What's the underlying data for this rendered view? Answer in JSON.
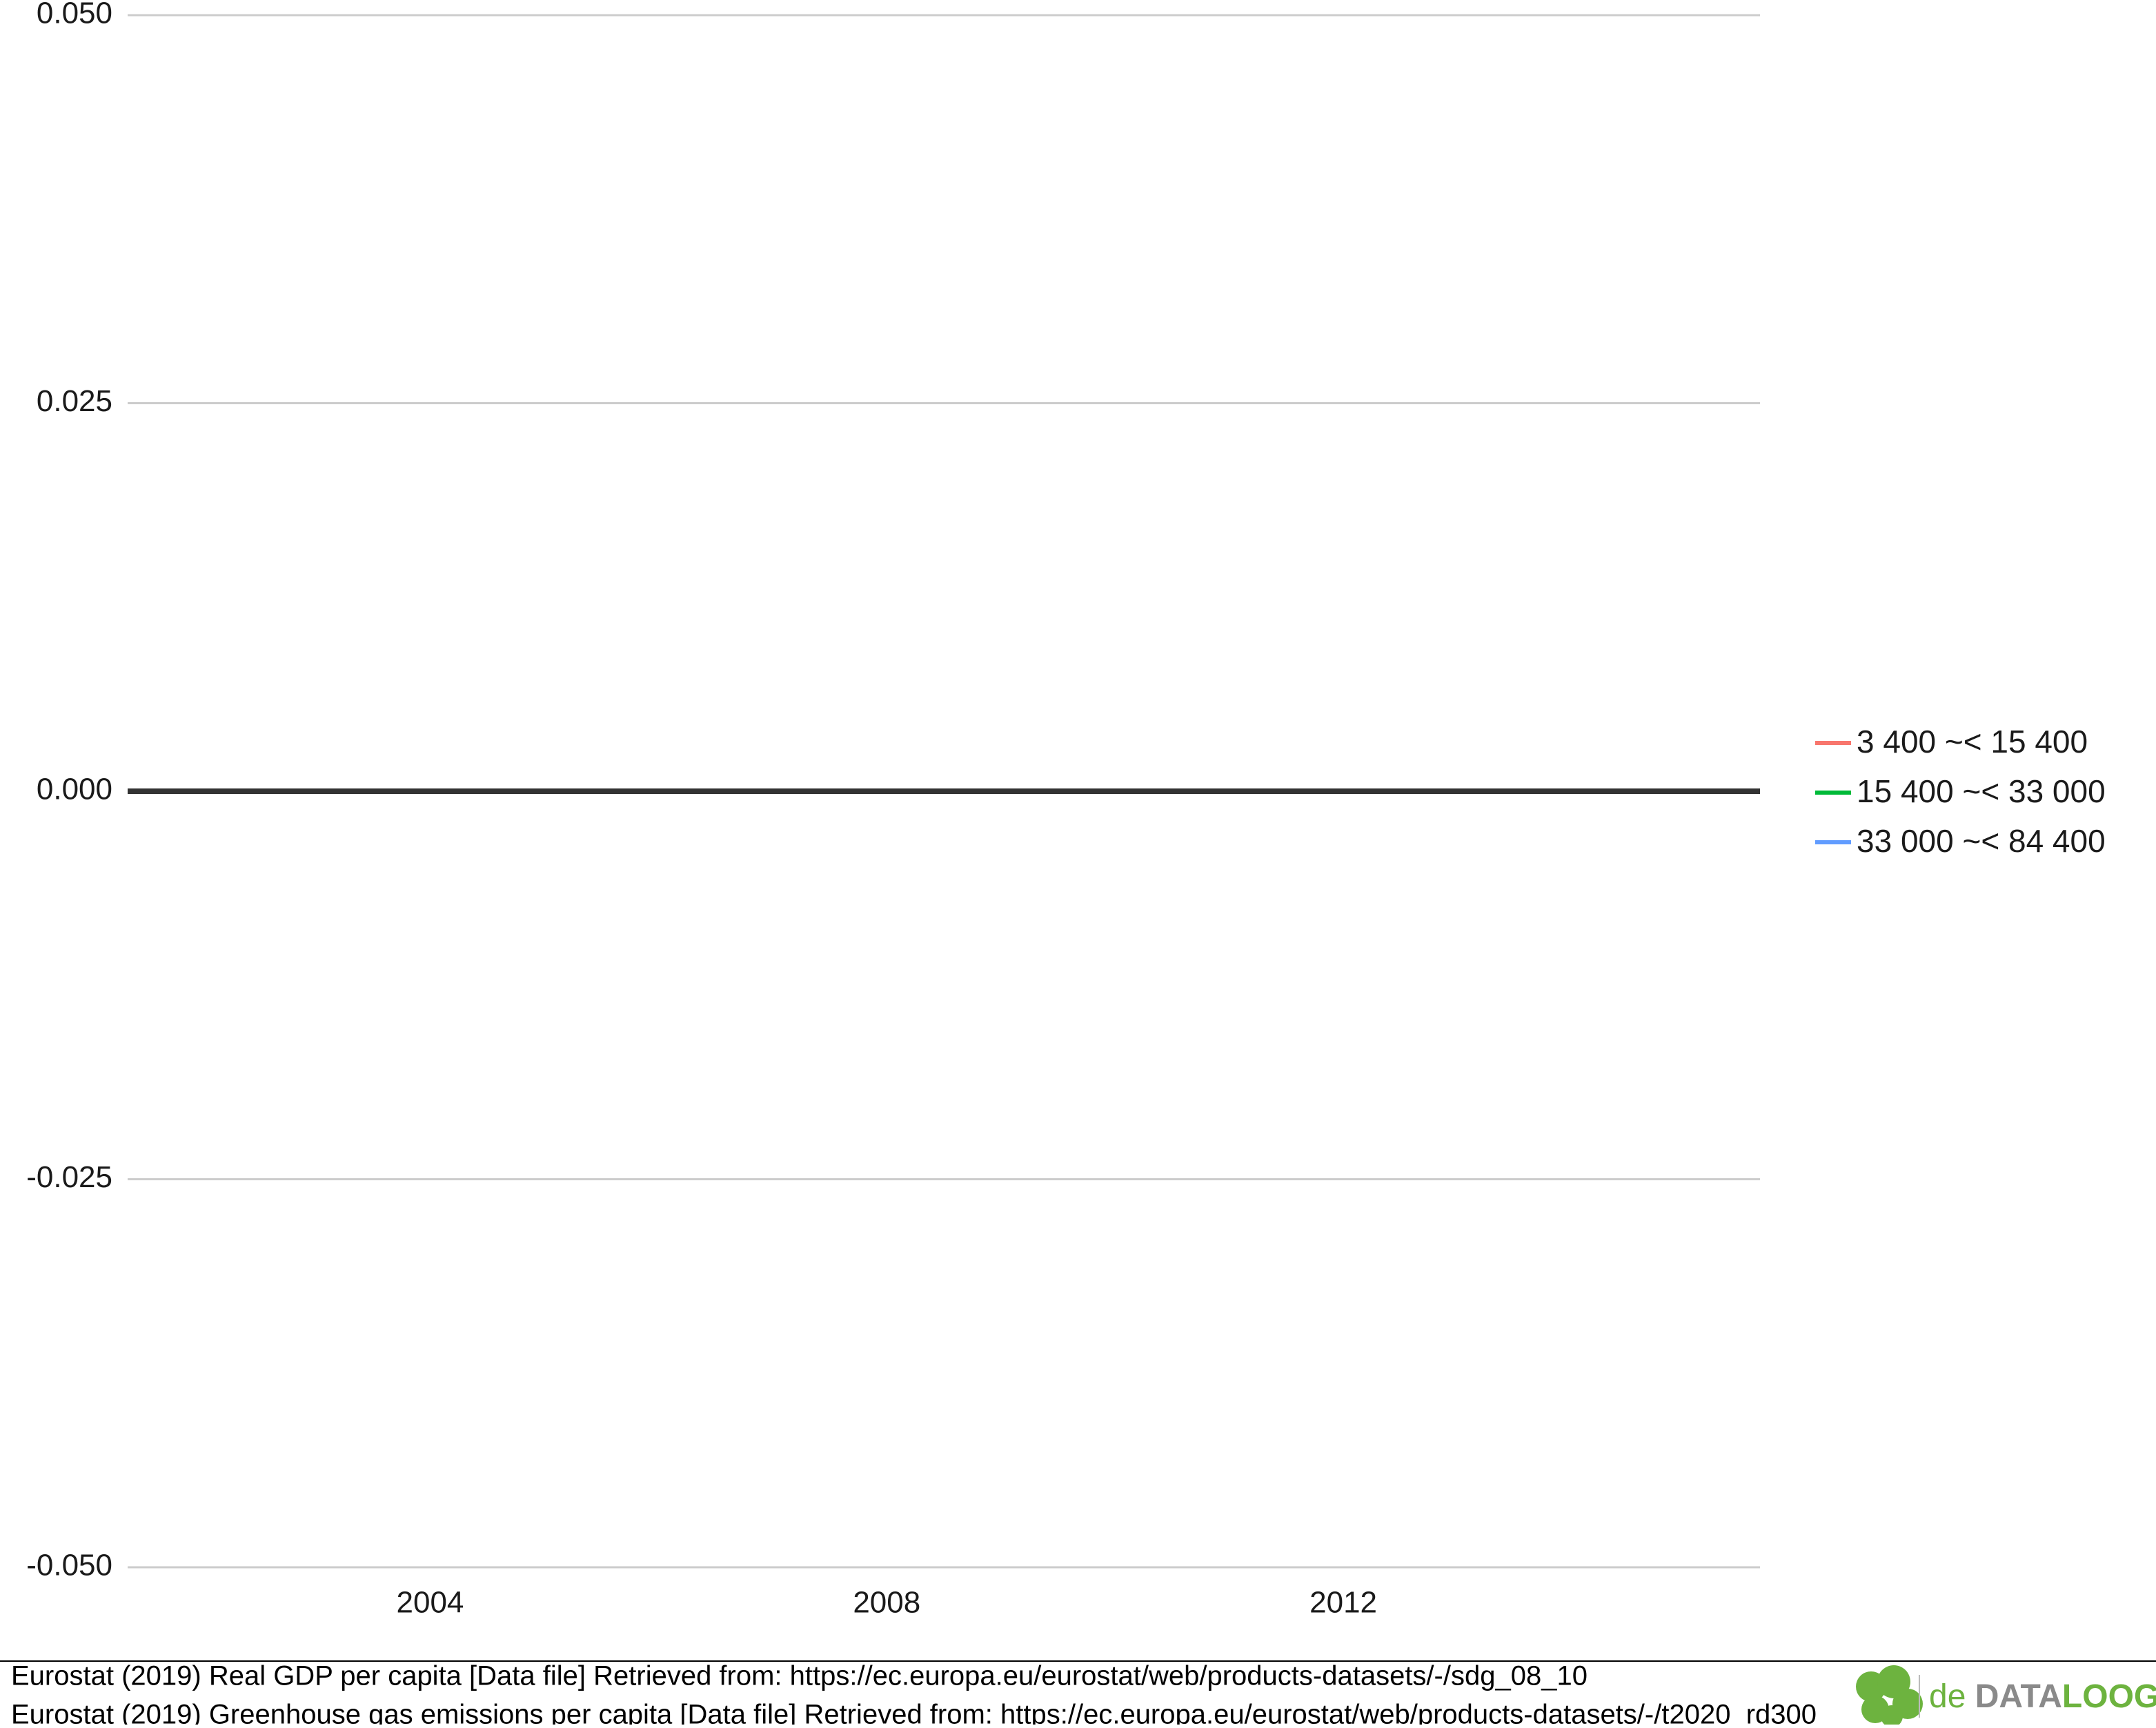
{
  "chart_data": {
    "type": "line",
    "series": [
      {
        "name": "3 400 ~< 15 400",
        "color": "#f8766d"
      },
      {
        "name": "15 400 ~< 33 000",
        "color": "#00ba38"
      },
      {
        "name": "33 000 ~< 84 400",
        "color": "#619cff"
      }
    ],
    "xlim": [
      2001.35,
      2015.65
    ],
    "xticks": [
      2004,
      2008,
      2012
    ],
    "ylim": [
      -0.05,
      0.05
    ],
    "yticks": [
      {
        "value": -0.05,
        "label": "-0.050"
      },
      {
        "value": -0.025,
        "label": "-0.025"
      },
      {
        "value": 0,
        "label": "0.000"
      },
      {
        "value": 0.025,
        "label": "0.025"
      },
      {
        "value": 0.05,
        "label": "0.050"
      }
    ],
    "grid": true,
    "legend": "right"
  },
  "footer": {
    "sources": [
      "Eurostat (2019) Real GDP per capita [Data file] Retrieved from: https://ec.europa.eu/eurostat/web/products-datasets/-/sdg_08_10",
      "Eurostat (2019) Greenhouse gas emissions per capita [Data file] Retrieved from: https://ec.europa.eu/eurostat/web/products-datasets/-/t2020_rd300"
    ],
    "logo": {
      "prefix": "de",
      "main": "DATA",
      "accent": "LOOG"
    }
  }
}
